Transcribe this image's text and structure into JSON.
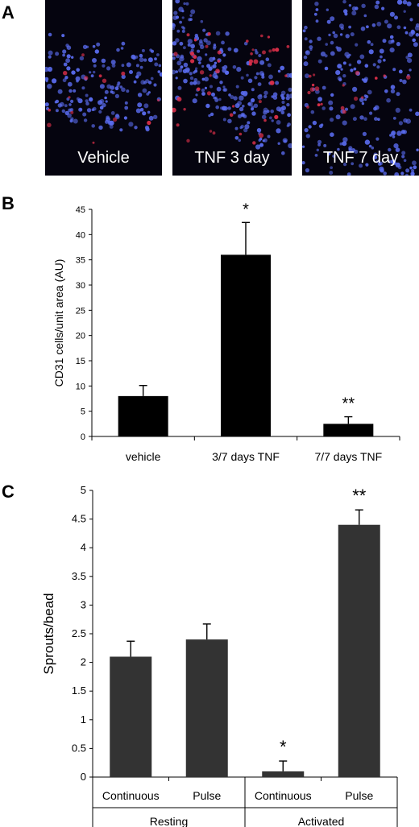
{
  "panels": {
    "a": "A",
    "b": "B",
    "c": "C"
  },
  "micrographs": [
    {
      "label": "Vehicle"
    },
    {
      "label": "TNF 3 day"
    },
    {
      "label": "TNF 7 day"
    }
  ],
  "colors": {
    "nuclei": "#5a6cf0",
    "cd31": "#e0304a",
    "background": "#05040f",
    "bar_b": "#000000",
    "bar_c": "#333333"
  },
  "chart_data": [
    {
      "type": "bar",
      "categories": [
        "vehicle",
        "3/7 days TNF",
        "7/7 days TNF"
      ],
      "values": [
        8,
        36,
        2.5
      ],
      "errors": [
        2.1,
        6.4,
        1.4
      ],
      "annotations": [
        "",
        "*",
        "**"
      ],
      "xlabel": "",
      "ylabel": "CD31 cells/unit area (AU)",
      "ylim": [
        0,
        45
      ],
      "yticks": [
        0,
        5,
        10,
        15,
        20,
        25,
        30,
        35,
        40,
        45
      ],
      "grid": false,
      "legend": "none"
    },
    {
      "type": "bar",
      "categories": [
        "Continuous",
        "Pulse",
        "Continuous",
        "Pulse"
      ],
      "groups": [
        {
          "name": "Resting",
          "span": [
            0,
            1
          ]
        },
        {
          "name": "Activated",
          "span": [
            2,
            3
          ]
        }
      ],
      "values": [
        2.1,
        2.4,
        0.1,
        4.4
      ],
      "errors": [
        0.27,
        0.27,
        0.18,
        0.26
      ],
      "annotations": [
        "",
        "",
        "*",
        "**"
      ],
      "xlabel": "",
      "ylabel": "Sprouts/bead",
      "ylim": [
        0,
        5
      ],
      "yticks": [
        "0",
        "0.5",
        "1",
        "1.5",
        "2",
        "2.5",
        "3",
        "3.5",
        "4",
        "4.5",
        "5"
      ],
      "grid": false,
      "legend": "none"
    }
  ]
}
